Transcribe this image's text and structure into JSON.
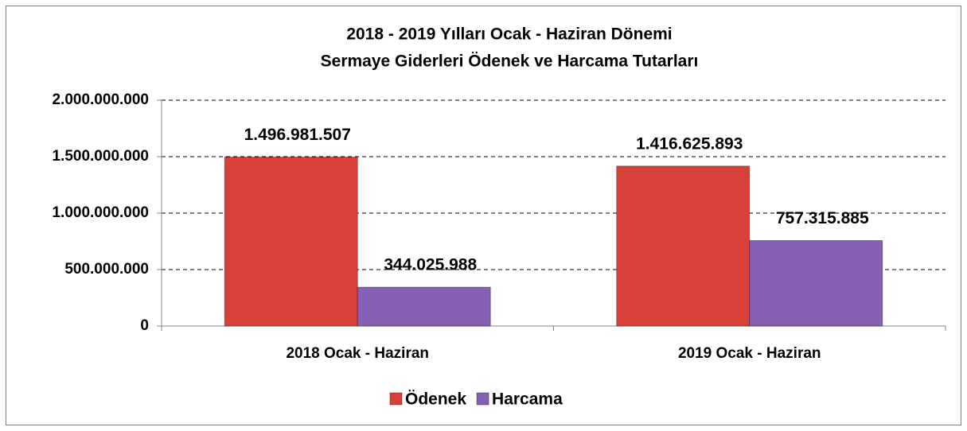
{
  "chart_data": {
    "type": "bar",
    "title": "2018 - 2019 Yılları Ocak - Haziran Dönemi",
    "subtitle": "Sermaye Giderleri Ödenek ve Harcama Tutarları",
    "categories": [
      "2018 Ocak - Haziran",
      "2019 Ocak - Haziran"
    ],
    "series": [
      {
        "name": "Ödenek",
        "color": "#d8413a",
        "values": [
          1496981507,
          1416625893
        ],
        "value_labels": [
          "1.496.981.507",
          "1.416.625.893"
        ]
      },
      {
        "name": "Harcama",
        "color": "#8560b5",
        "values": [
          344025988,
          757315885
        ],
        "value_labels": [
          "344.025.988",
          "757.315.885"
        ]
      }
    ],
    "ylim": [
      0,
      2000000000
    ],
    "yticks": [
      0,
      {
        "value": 500000000,
        "label": "500.000.000"
      },
      {
        "value": 1000000000,
        "label": "1.000.000.000"
      },
      {
        "value": 1500000000,
        "label": "1.500.000.000"
      },
      {
        "value": 2000000000,
        "label": "2.000.000.000"
      }
    ],
    "grid": true,
    "legend": "bottom"
  }
}
